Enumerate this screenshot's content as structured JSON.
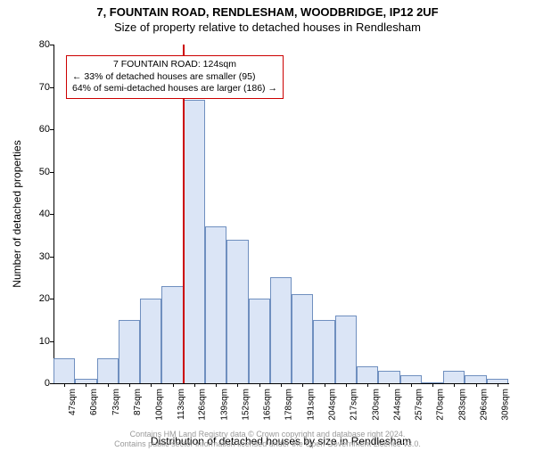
{
  "titles": {
    "line1": "7, FOUNTAIN ROAD, RENDLESHAM, WOODBRIDGE, IP12 2UF",
    "line2": "Size of property relative to detached houses in Rendlesham"
  },
  "annotation": {
    "line1": "7 FOUNTAIN ROAD: 124sqm",
    "line2": "← 33% of detached houses are smaller (95)",
    "line3": "64% of semi-detached houses are larger (186) →",
    "border_color": "#cc0000"
  },
  "chart": {
    "type": "histogram",
    "ylabel": "Number of detached properties",
    "xlabel": "Distribution of detached houses by size in Rendlesham",
    "ylim": [
      0,
      80
    ],
    "ytick_step": 10,
    "yticks": [
      0,
      10,
      20,
      30,
      40,
      50,
      60,
      70,
      80
    ],
    "bar_fill": "#dbe5f6",
    "bar_stroke": "#6f8fbf",
    "highlight_color": "#cc0000",
    "highlight_index": 6,
    "background_color": "#ffffff",
    "categories": [
      "47sqm",
      "60sqm",
      "73sqm",
      "87sqm",
      "100sqm",
      "113sqm",
      "126sqm",
      "139sqm",
      "152sqm",
      "165sqm",
      "178sqm",
      "191sqm",
      "204sqm",
      "217sqm",
      "230sqm",
      "244sqm",
      "257sqm",
      "270sqm",
      "283sqm",
      "296sqm",
      "309sqm"
    ],
    "values": [
      6,
      1,
      6,
      15,
      20,
      23,
      67,
      37,
      34,
      20,
      25,
      21,
      15,
      16,
      4,
      3,
      2,
      0,
      3,
      2,
      1
    ],
    "label_fontsize": 12,
    "tick_fontsize": 11
  },
  "footer": {
    "line1": "Contains HM Land Registry data © Crown copyright and database right 2024.",
    "line2": "Contains public sector information licensed under the Open Government Licence v3.0."
  }
}
